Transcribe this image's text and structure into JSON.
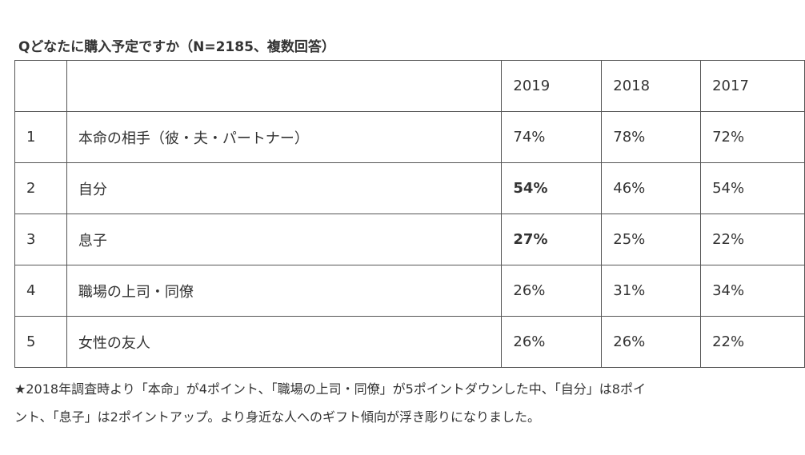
{
  "title": "Qどなたに購入予定ですか（N=2185、複数回答）",
  "table": {
    "header": {
      "rank": "",
      "label": "",
      "years": [
        "2019",
        "2018",
        "2017"
      ]
    },
    "rows": [
      {
        "rank": "1",
        "label": "本命の相手（彼・夫・パートナー）",
        "values": [
          "74%",
          "78%",
          "72%"
        ],
        "bold_2019": false
      },
      {
        "rank": "2",
        "label": "自分",
        "values": [
          "54%",
          "46%",
          "54%"
        ],
        "bold_2019": true
      },
      {
        "rank": "3",
        "label": "息子",
        "values": [
          "27%",
          "25%",
          "22%"
        ],
        "bold_2019": true
      },
      {
        "rank": "4",
        "label": "職場の上司・同僚",
        "values": [
          "26%",
          "31%",
          "34%"
        ],
        "bold_2019": false
      },
      {
        "rank": "5",
        "label": "女性の友人",
        "values": [
          "26%",
          "26%",
          "22%"
        ],
        "bold_2019": false
      }
    ]
  },
  "footnote": {
    "line1": "★2018年調査時より「本命」が4ポイント、「職場の上司・同僚」が5ポイントダウンした中、「自分」は8ポイ",
    "line2": "ント、「息子」は2ポイントアップ。より身近な人へのギフト傾向が浮き彫りになりました。"
  }
}
